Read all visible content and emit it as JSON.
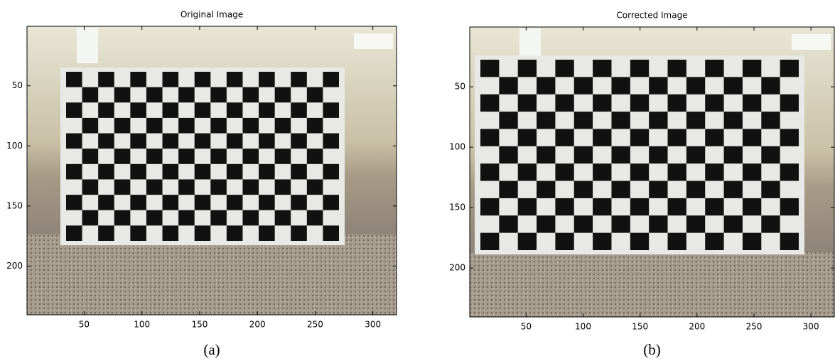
{
  "panels": [
    {
      "title": "Original Image",
      "caption": "(a)",
      "xlim": [
        0.5,
        320.5
      ],
      "ylim": [
        0.5,
        240.5
      ],
      "xticks": [
        50,
        100,
        150,
        200,
        250,
        300
      ],
      "yticks": [
        50,
        100,
        150,
        200
      ]
    },
    {
      "title": "Corrected Image",
      "caption": "(b)",
      "xlim": [
        0.5,
        320.5
      ],
      "ylim": [
        0.5,
        240.5
      ],
      "xticks": [
        50,
        100,
        150,
        200,
        250,
        300
      ],
      "yticks": [
        50,
        100,
        150,
        200
      ]
    }
  ]
}
